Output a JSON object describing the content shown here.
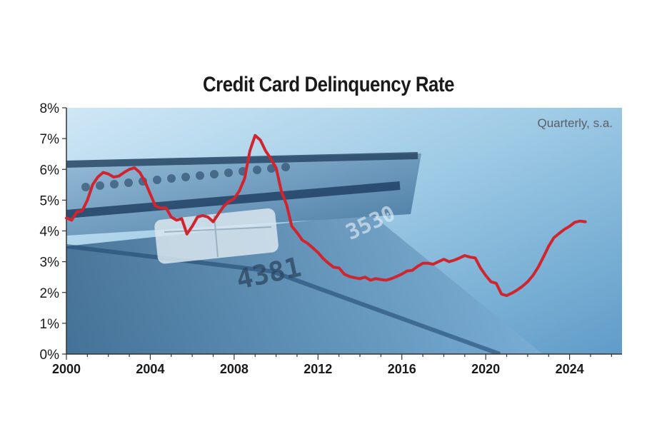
{
  "chart_data": {
    "type": "line",
    "title": "Credit Card Delinquency Rate",
    "annotation": "Quarterly, s.a.",
    "xlabel": "",
    "ylabel": "",
    "xlim": [
      2000,
      2026.5
    ],
    "ylim": [
      0,
      8
    ],
    "x_ticks": [
      "2000",
      "2004",
      "2008",
      "2012",
      "2016",
      "2020",
      "2024"
    ],
    "y_ticks": [
      "0%",
      "1%",
      "2%",
      "3%",
      "4%",
      "5%",
      "6%",
      "7%",
      "8%"
    ],
    "grid": false,
    "line_color": "#d0242e",
    "background": "credit cards photo (blue tones)",
    "series": [
      {
        "name": "",
        "x": [
          2000.0,
          2000.25,
          2000.5,
          2000.75,
          2001.0,
          2001.25,
          2001.5,
          2001.75,
          2002.0,
          2002.25,
          2002.5,
          2002.75,
          2003.0,
          2003.25,
          2003.5,
          2003.75,
          2004.0,
          2004.25,
          2004.5,
          2004.75,
          2005.0,
          2005.25,
          2005.5,
          2005.75,
          2006.0,
          2006.25,
          2006.5,
          2006.75,
          2007.0,
          2007.25,
          2007.5,
          2007.75,
          2008.0,
          2008.25,
          2008.5,
          2008.75,
          2009.0,
          2009.25,
          2009.5,
          2009.75,
          2010.0,
          2010.25,
          2010.5,
          2010.75,
          2011.0,
          2011.25,
          2011.5,
          2011.75,
          2012.0,
          2012.25,
          2012.5,
          2012.75,
          2013.0,
          2013.25,
          2013.5,
          2013.75,
          2014.0,
          2014.25,
          2014.5,
          2014.75,
          2015.0,
          2015.25,
          2015.5,
          2015.75,
          2016.0,
          2016.25,
          2016.5,
          2016.75,
          2017.0,
          2017.25,
          2017.5,
          2017.75,
          2018.0,
          2018.25,
          2018.5,
          2018.75,
          2019.0,
          2019.25,
          2019.5,
          2019.75,
          2020.0,
          2020.25,
          2020.5,
          2020.75,
          2021.0,
          2021.25,
          2021.5,
          2021.75,
          2022.0,
          2022.25,
          2022.5,
          2022.75,
          2023.0,
          2023.25,
          2023.5,
          2023.75,
          2024.0,
          2024.25,
          2024.5,
          2024.75
        ],
        "values": [
          4.42,
          4.35,
          4.62,
          4.65,
          5.0,
          5.5,
          5.75,
          5.9,
          5.85,
          5.75,
          5.78,
          5.9,
          6.0,
          6.05,
          5.9,
          5.6,
          5.2,
          4.8,
          4.75,
          4.75,
          4.45,
          4.35,
          4.4,
          3.9,
          4.15,
          4.45,
          4.5,
          4.45,
          4.3,
          4.55,
          4.8,
          4.95,
          5.05,
          5.3,
          5.7,
          6.6,
          7.1,
          6.95,
          6.6,
          6.35,
          6.05,
          5.3,
          4.85,
          4.15,
          3.95,
          3.7,
          3.6,
          3.45,
          3.3,
          3.1,
          2.95,
          2.82,
          2.8,
          2.6,
          2.52,
          2.48,
          2.45,
          2.5,
          2.4,
          2.45,
          2.42,
          2.4,
          2.45,
          2.52,
          2.6,
          2.7,
          2.72,
          2.85,
          2.95,
          2.95,
          2.92,
          3.0,
          3.08,
          3.0,
          3.05,
          3.12,
          3.2,
          3.15,
          3.12,
          2.8,
          2.55,
          2.35,
          2.3,
          1.95,
          1.9,
          1.98,
          2.08,
          2.2,
          2.35,
          2.55,
          2.82,
          3.15,
          3.5,
          3.78,
          3.92,
          4.05,
          4.15,
          4.28,
          4.32,
          4.3
        ]
      }
    ]
  }
}
